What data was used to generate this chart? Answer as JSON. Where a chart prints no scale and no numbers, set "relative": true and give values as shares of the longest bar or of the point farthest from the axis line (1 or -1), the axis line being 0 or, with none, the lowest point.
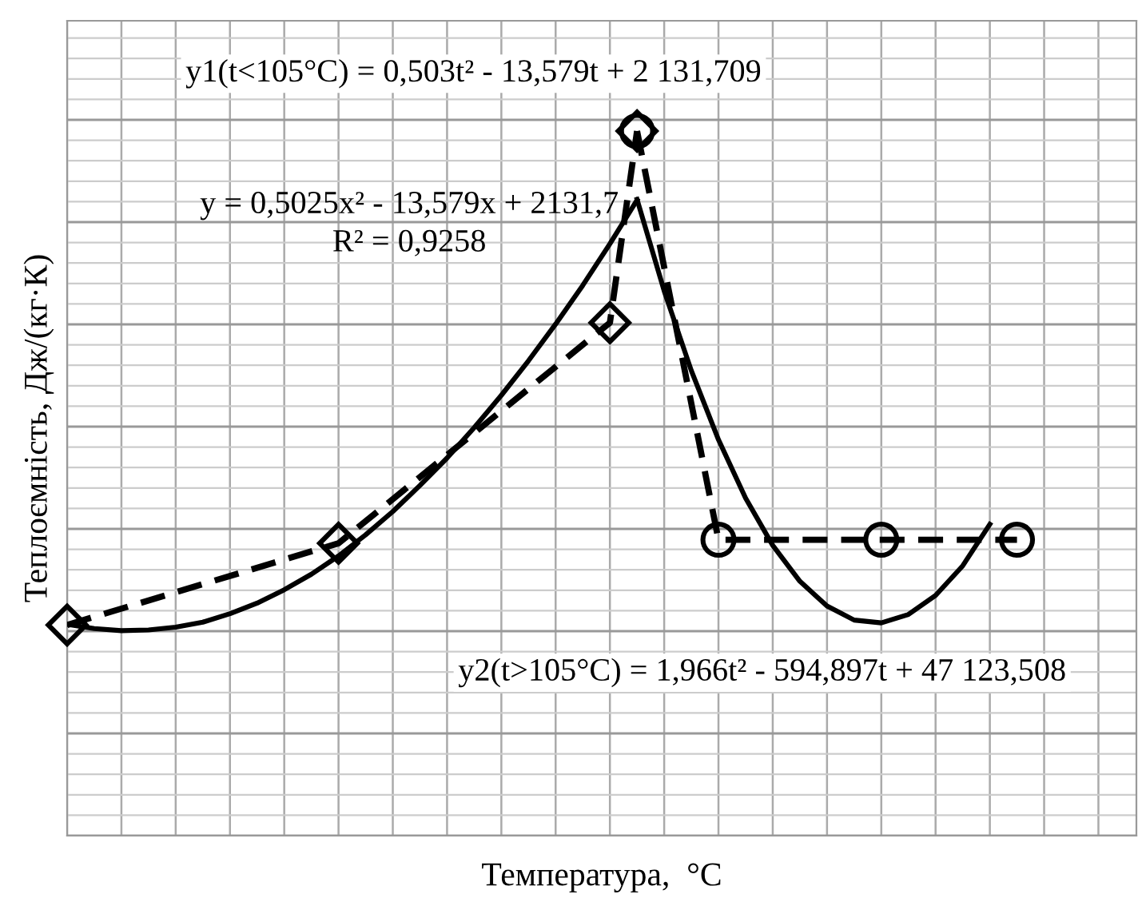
{
  "chart_data": {
    "type": "line",
    "relative": true,
    "grid": true,
    "xlabel": "Температура,  °C",
    "ylabel": "Теплоємність, Дж/(кг·К)",
    "annotations": [
      "y1(t<105°C) = 0,503t² - 13,579t + 2 131,709",
      "y = 0,5025x² - 13,579x + 2131,7\nR² = 0,9258",
      "y2(t>105°C) = 1,966t² - 594,897t + 47 123,508"
    ],
    "categories": [
      null,
      null,
      null,
      null,
      null,
      null,
      null,
      null,
      null,
      null,
      null,
      null,
      null,
      null,
      null,
      null,
      null,
      null,
      null,
      null,
      null,
      null,
      null,
      null,
      null,
      null,
      null,
      null,
      null,
      null,
      null,
      null,
      null,
      null,
      null,
      null,
      null,
      null,
      null,
      null
    ],
    "series": [
      {
        "color": "#000000",
        "marker": "none",
        "line_style": "solid",
        "values": [
          0.3,
          0.294,
          0.291,
          0.292,
          0.296,
          0.303,
          0.315,
          0.33,
          0.349,
          0.371,
          0.397,
          0.427,
          0.46,
          0.497,
          0.536,
          0.579,
          0.625,
          0.674,
          0.726,
          0.781,
          0.84,
          0.902,
          null,
          null,
          null,
          null,
          null,
          null,
          null,
          null,
          null,
          null,
          null,
          null,
          null,
          null,
          null,
          null,
          null,
          null
        ]
      },
      {
        "color": "#000000",
        "marker": "none",
        "line_style": "solid",
        "values": [
          null,
          null,
          null,
          null,
          null,
          null,
          null,
          null,
          null,
          null,
          null,
          null,
          null,
          null,
          null,
          null,
          null,
          null,
          null,
          null,
          null,
          0.903,
          0.773,
          0.66,
          0.562,
          0.479,
          0.412,
          0.361,
          0.326,
          0.306,
          0.302,
          0.314,
          0.341,
          0.383,
          0.442,
          null,
          null,
          null,
          null,
          null
        ]
      },
      {
        "color": "#000000",
        "marker": "diamond",
        "line_style": "dashed",
        "values": [
          0.299,
          null,
          null,
          null,
          null,
          null,
          null,
          null,
          null,
          null,
          0.415,
          null,
          null,
          null,
          null,
          null,
          null,
          null,
          null,
          null,
          0.728,
          1,
          null,
          null,
          null,
          null,
          null,
          null,
          null,
          null,
          null,
          null,
          null,
          null,
          null,
          null,
          null,
          null,
          null,
          null
        ]
      },
      {
        "color": "#000000",
        "marker": "circle",
        "line_style": "dashed",
        "values": [
          null,
          null,
          null,
          null,
          null,
          null,
          null,
          null,
          null,
          null,
          null,
          null,
          null,
          null,
          null,
          null,
          null,
          null,
          null,
          null,
          null,
          1,
          null,
          null,
          0.42,
          null,
          null,
          null,
          null,
          null,
          0.42,
          null,
          null,
          null,
          null,
          0.42,
          null,
          null,
          null,
          null
        ]
      }
    ]
  }
}
